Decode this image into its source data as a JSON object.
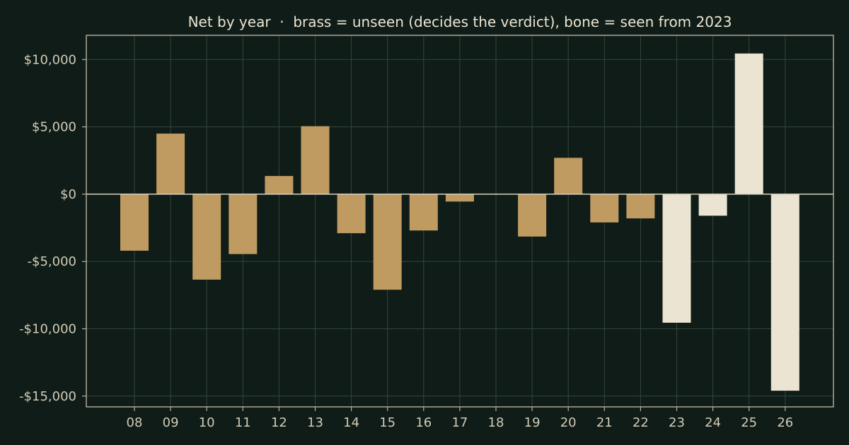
{
  "chart_data": {
    "type": "bar",
    "title": "Net by year  ·  brass = unseen (decides the verdict), bone = seen from 2023",
    "xlabel": "",
    "ylabel": "",
    "categories": [
      "08",
      "09",
      "10",
      "11",
      "12",
      "13",
      "14",
      "15",
      "16",
      "17",
      "18",
      "19",
      "20",
      "21",
      "22",
      "23",
      "24",
      "25",
      "26"
    ],
    "values": [
      -4200,
      4500,
      -6350,
      -4450,
      1350,
      5050,
      -2900,
      -7100,
      -2700,
      -550,
      0,
      -3150,
      2700,
      -2100,
      -1800,
      -9550,
      -1600,
      10450,
      -14600
    ],
    "seen": [
      false,
      false,
      false,
      false,
      false,
      false,
      false,
      false,
      false,
      false,
      false,
      false,
      false,
      false,
      false,
      true,
      true,
      true,
      true
    ],
    "ylim": [
      -15800,
      11800
    ],
    "yticks": [
      10000,
      5000,
      0,
      -5000,
      -10000,
      -15000
    ],
    "ytick_labels": [
      "$10,000",
      "$5,000",
      "$0",
      "-$5,000",
      "-$10,000",
      "-$15,000"
    ],
    "grid": true,
    "colors": {
      "unseen": "#bf9b62",
      "seen": "#ece4d2"
    }
  }
}
